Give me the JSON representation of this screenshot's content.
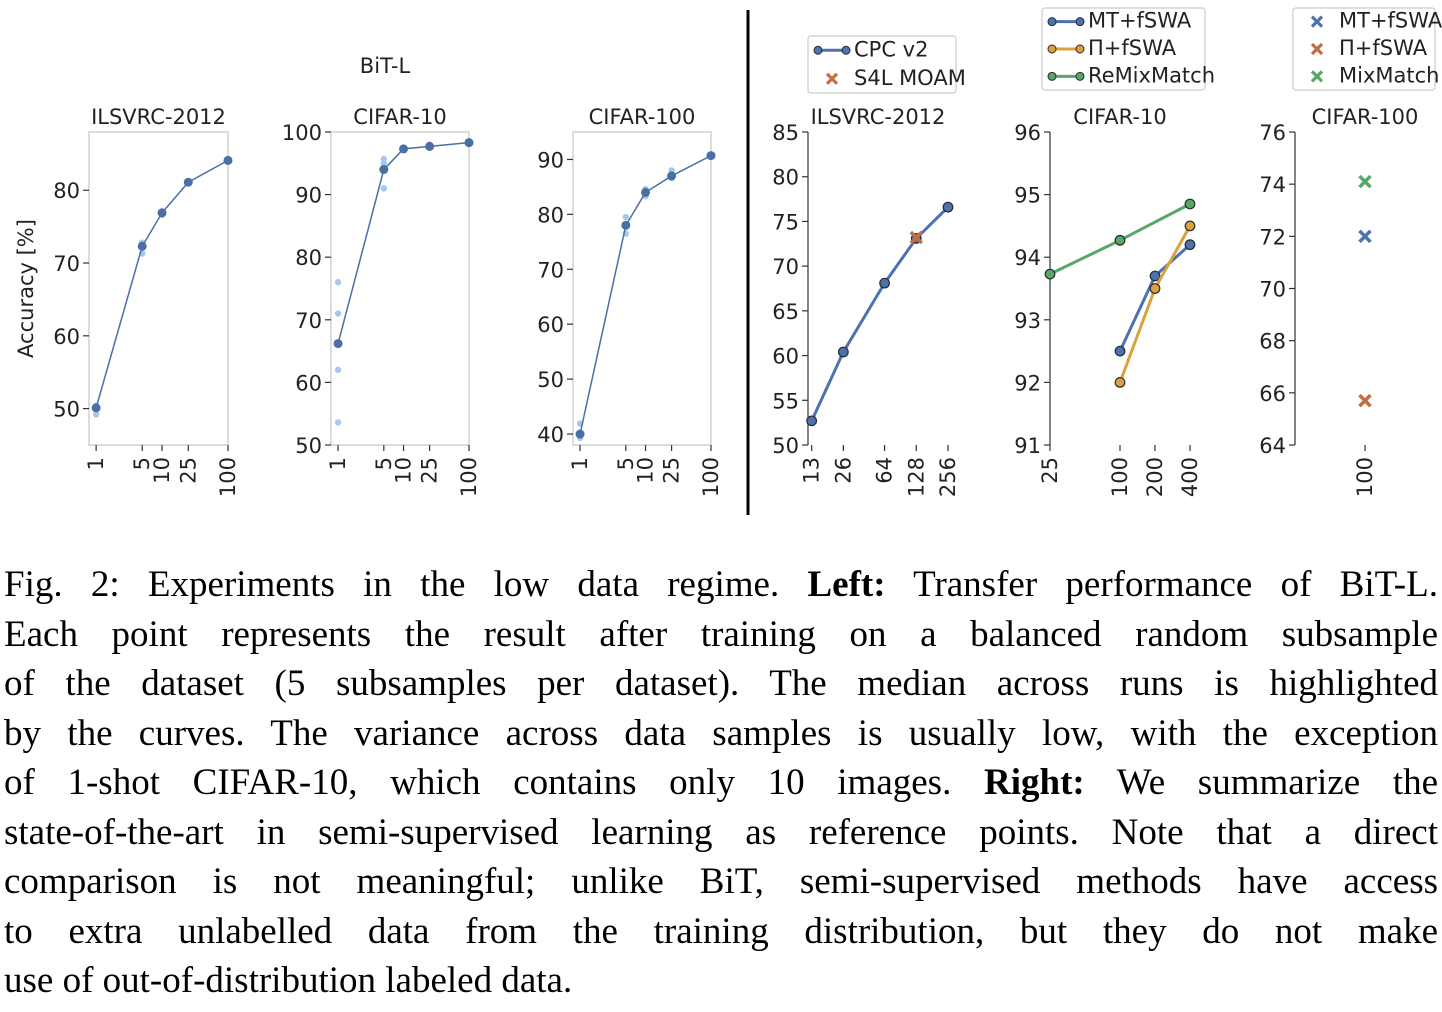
{
  "suptitle": "BiT-L",
  "chart_data": [
    {
      "type": "line",
      "title": "ILSVRC-2012",
      "ylabel": "Accuracy [%]",
      "xscale": "log",
      "x": [
        1,
        5,
        10,
        25,
        100
      ],
      "xlim": [
        0.78,
        100
      ],
      "xticks": [
        1,
        5,
        10,
        25,
        100
      ],
      "ylim": [
        45,
        88
      ],
      "yticks": [
        50,
        60,
        70,
        80
      ],
      "series": [
        {
          "color": "#4a6fa5",
          "values": [
            50.1,
            72.3,
            76.9,
            81.1,
            84.1
          ]
        }
      ],
      "samples": {
        "color": "#a6c8ee",
        "x": [
          1,
          1,
          5,
          5,
          10,
          25,
          100
        ],
        "y": [
          49.2,
          50.4,
          71.3,
          72.8,
          76.6,
          81.2,
          84.2
        ]
      }
    },
    {
      "type": "line",
      "title": "CIFAR-10",
      "xscale": "log",
      "x": [
        1,
        5,
        10,
        25,
        100
      ],
      "xlim": [
        0.78,
        100
      ],
      "xticks": [
        1,
        5,
        10,
        25,
        100
      ],
      "ylim": [
        50,
        100
      ],
      "yticks": [
        50,
        60,
        70,
        80,
        90,
        100
      ],
      "series": [
        {
          "color": "#4a6fa5",
          "values": [
            66.2,
            94,
            97.3,
            97.7,
            98.3
          ]
        }
      ],
      "samples": {
        "color": "#a6c8ee",
        "x": [
          1,
          1,
          1,
          1,
          5,
          5,
          5,
          10,
          25,
          100
        ],
        "y": [
          76,
          71,
          62,
          53.6,
          91,
          95,
          95.7,
          97.4,
          98,
          98.4
        ]
      }
    },
    {
      "type": "line",
      "title": "CIFAR-100",
      "xscale": "log",
      "x": [
        1,
        5,
        10,
        25,
        100
      ],
      "xlim": [
        0.78,
        100
      ],
      "xticks": [
        1,
        5,
        10,
        25,
        100
      ],
      "ylim": [
        38,
        95
      ],
      "yticks": [
        40,
        50,
        60,
        70,
        80,
        90
      ],
      "series": [
        {
          "color": "#4a6fa5",
          "values": [
            40,
            78,
            84,
            87,
            90.7
          ]
        }
      ],
      "samples": {
        "color": "#a6c8ee",
        "x": [
          1,
          1,
          5,
          5,
          10,
          10,
          25,
          25,
          100
        ],
        "y": [
          41.9,
          39.3,
          79.5,
          76.5,
          83.3,
          84.6,
          88,
          86.6,
          90.9
        ]
      }
    },
    {
      "type": "line",
      "title": "ILSVRC-2012",
      "xscale": "log",
      "legend": "above",
      "xlim": [
        12,
        256
      ],
      "xticks": [
        13,
        26,
        64,
        128,
        256
      ],
      "ylim": [
        50,
        85
      ],
      "yticks": [
        50,
        55,
        60,
        65,
        70,
        75,
        80,
        85
      ],
      "series": [
        {
          "name": "CPC v2",
          "color": "#4c72b0",
          "marker": "o",
          "x": [
            13,
            26,
            64,
            128,
            256
          ],
          "values": [
            52.7,
            60.4,
            68.1,
            73.1,
            76.6
          ]
        },
        {
          "name": "S4L MOAM",
          "color": "#c07040",
          "marker": "x",
          "x": [
            128
          ],
          "values": [
            73.2
          ]
        }
      ]
    },
    {
      "type": "line",
      "title": "CIFAR-10",
      "xscale": "log",
      "legend": "above",
      "xlim": [
        25,
        400
      ],
      "xticks": [
        25,
        100,
        200,
        400
      ],
      "ylim": [
        91,
        96
      ],
      "yticks": [
        91,
        92,
        93,
        94,
        95,
        96
      ],
      "series": [
        {
          "name": "MT+fSWA",
          "color": "#4c72b0",
          "marker": "o",
          "x": [
            100,
            200,
            400
          ],
          "values": [
            92.5,
            93.7,
            94.2
          ]
        },
        {
          "name": "Π+fSWA",
          "color": "#dba13a",
          "marker": "o",
          "x": [
            100,
            200,
            400
          ],
          "values": [
            92,
            93.5,
            94.5
          ]
        },
        {
          "name": "ReMixMatch",
          "color": "#55a868",
          "marker": "o",
          "x": [
            25,
            100,
            400
          ],
          "values": [
            93.73,
            94.27,
            94.85
          ]
        }
      ]
    },
    {
      "type": "scatter",
      "title": "CIFAR-100",
      "legend": "above",
      "categories": [
        "100"
      ],
      "ylim": [
        64,
        76
      ],
      "yticks": [
        64,
        66,
        68,
        70,
        72,
        74,
        76
      ],
      "series": [
        {
          "name": "MT+fSWA",
          "color": "#4c72b0",
          "marker": "x",
          "values": [
            72
          ]
        },
        {
          "name": "Π+fSWA",
          "color": "#c07040",
          "marker": "x",
          "values": [
            65.7
          ]
        },
        {
          "name": "MixMatch",
          "color": "#55a868",
          "marker": "x",
          "values": [
            74.1
          ]
        }
      ]
    }
  ],
  "caption": [
    [
      {
        "text": "Fig. 2: Experiments in the low data regime."
      },
      {
        "text": "Left:",
        "bold": true
      },
      {
        "text": "Transfer performance of BiT-L."
      }
    ],
    [
      {
        "text": "Each point represents the result after training on a balanced random subsample"
      }
    ],
    [
      {
        "text": "of the dataset (5 subsamples per dataset). The median across runs is highlighted"
      }
    ],
    [
      {
        "text": "by the curves. The variance across data samples is usually low, with the exception"
      }
    ],
    [
      {
        "text": "of 1-shot CIFAR-10, which contains only 10 images."
      },
      {
        "text": "Right:",
        "bold": true
      },
      {
        "text": "We summarize the"
      }
    ],
    [
      {
        "text": "state-of-the-art in semi-supervised learning as reference points. Note that a direct"
      }
    ],
    [
      {
        "text": "comparison is not meaningful; unlike BiT, semi-supervised methods have access"
      }
    ],
    [
      {
        "text": "to extra unlabelled data from the training distribution, but they do not make"
      }
    ],
    [
      {
        "text": "use of out-of-distribution labeled data."
      }
    ]
  ]
}
